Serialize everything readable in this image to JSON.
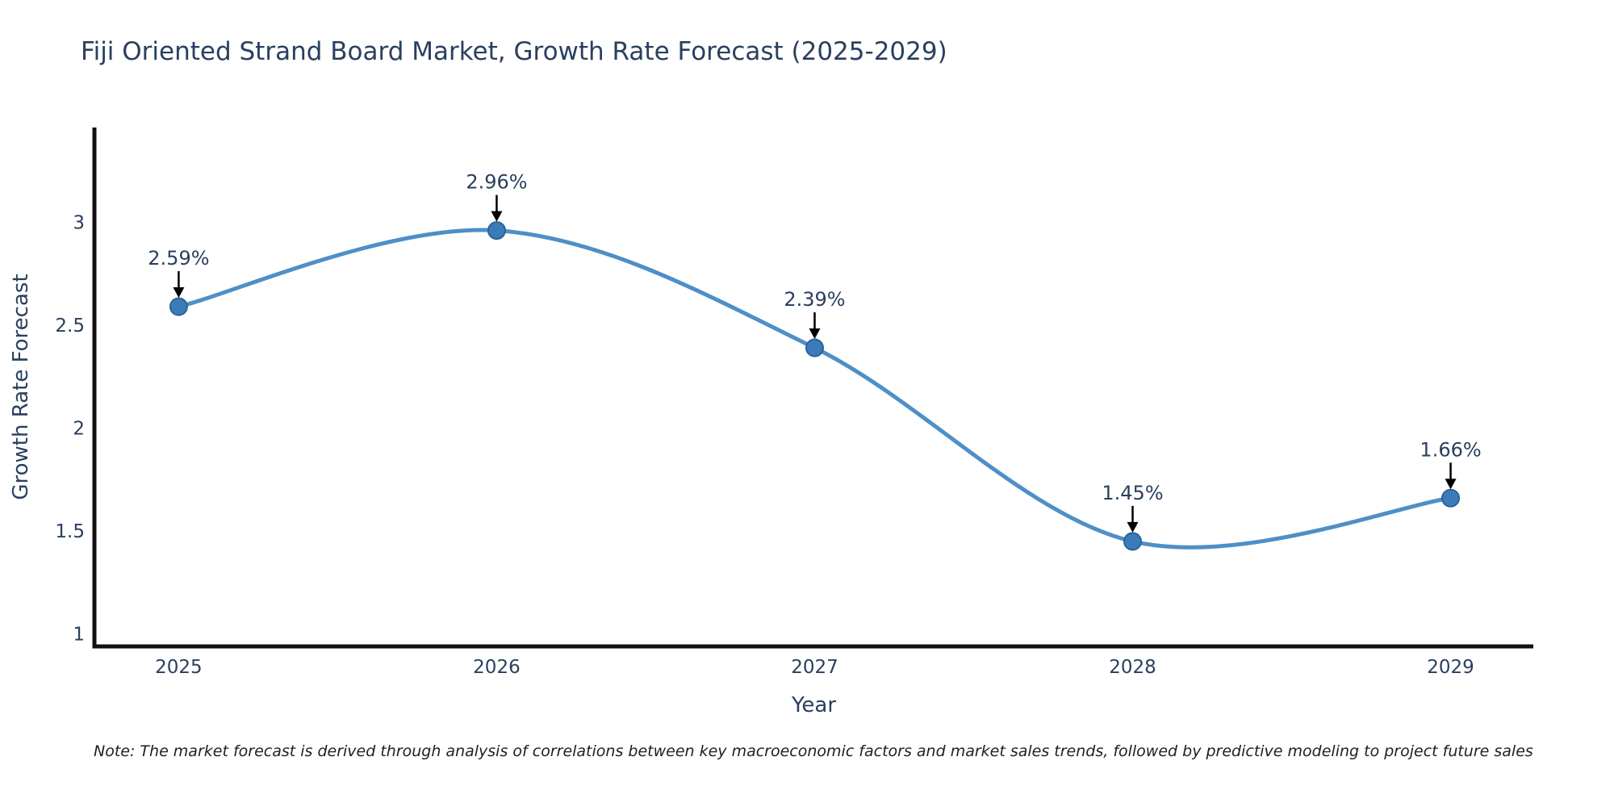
{
  "note": "Note: The market forecast is derived through analysis of correlations between key macroeconomic factors and market sales trends, followed by predictive modeling to project future sales",
  "chart_data": {
    "type": "line",
    "title": "Fiji Oriented Strand Board Market, Growth Rate Forecast (2025-2029)",
    "xlabel": "Year",
    "ylabel": "Growth Rate Forecast",
    "x": [
      2025,
      2026,
      2027,
      2028,
      2029
    ],
    "values": [
      2.59,
      2.96,
      2.39,
      1.45,
      1.66
    ],
    "point_labels": [
      "2.59%",
      "2.96%",
      "2.39%",
      "1.45%",
      "1.66%"
    ],
    "xticks": [
      "2025",
      "2026",
      "2027",
      "2028",
      "2029"
    ],
    "yticks": [
      1,
      1.5,
      2,
      2.5,
      3
    ],
    "xlim": [
      2024.735,
      2029.26
    ],
    "ylim": [
      0.94,
      3.46
    ],
    "grid": false,
    "legend": false,
    "line_shape": "spline",
    "marker_mode": "lines+markers+annotations",
    "colors": {
      "line": "#4e8fc7",
      "marker": "#3b7cb8",
      "marker_edge": "#2a6398",
      "axis": "#111111",
      "text": "#2a3f5f",
      "annotation_arrow": "#000000",
      "note_text": "#1f1f1f"
    }
  }
}
